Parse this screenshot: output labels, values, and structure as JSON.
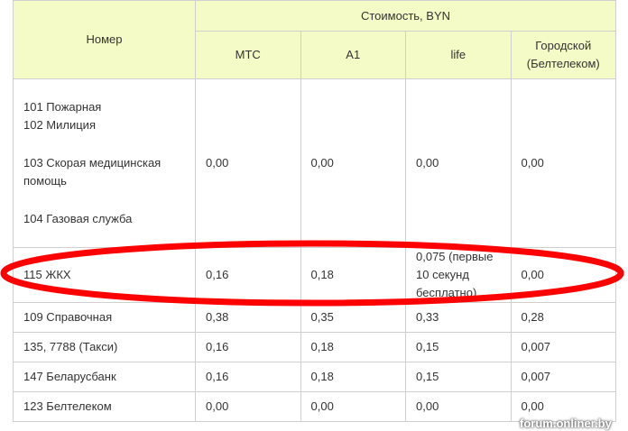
{
  "header": {
    "number": "Номер",
    "cost": "Стоимость, BYN",
    "operators": [
      "МТС",
      "A1",
      "life",
      "Городской (Белтелеком)"
    ]
  },
  "rows": [
    {
      "names": [
        "101 Пожарная",
        "102 Милиция",
        "103 Скорая медицинская помощь",
        "104 Газовая служба"
      ],
      "mts": "0,00",
      "a1": "0,00",
      "life": "0,00",
      "city": "0,00"
    },
    {
      "name": "115 ЖКХ",
      "mts": "0,16",
      "a1": "0,18",
      "life": "0,075 (первые 10 секунд бесплатно)",
      "city": "0,00",
      "highlighted": true
    },
    {
      "name": "109 Справочная",
      "mts": "0,38",
      "a1": "0,35",
      "life": "0,33",
      "city": "0,28"
    },
    {
      "name": "135, 7788 (Такси)",
      "mts": "0,16",
      "a1": "0,18",
      "life": "0,15",
      "city": "0,007"
    },
    {
      "name": "147 Беларусбанк",
      "mts": "0,16",
      "a1": "0,18",
      "life": "0,15",
      "city": "0,007"
    },
    {
      "name": "123 Белтелеком",
      "mts": "0,00",
      "a1": "0,00",
      "life": "0,00",
      "city": "0,00"
    }
  ],
  "annotation_color": "#ff0000",
  "watermark": "forum.onliner.by"
}
